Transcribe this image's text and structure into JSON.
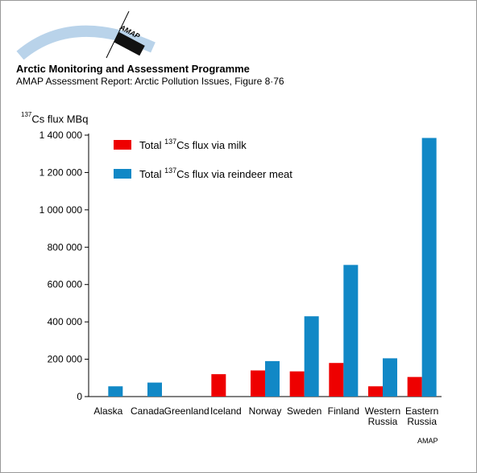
{
  "header": {
    "org": "Arctic Monitoring and Assessment Programme",
    "report": "AMAP Assessment Report: Arctic Pollution Issues, Figure 8·76",
    "logo_text": "AMAP",
    "credit": "AMAP"
  },
  "colors": {
    "milk": "#ee0000",
    "meat": "#1188c6",
    "axis": "#000000",
    "logo_arc": "#b9d3ea"
  },
  "chart_data": {
    "type": "bar",
    "ylabel_sup": "137",
    "ylabel": "Cs flux MBq",
    "ylim": [
      0,
      1400000
    ],
    "yticks": [
      0,
      200000,
      400000,
      600000,
      800000,
      1000000,
      1200000,
      1400000
    ],
    "ytick_labels": [
      "0",
      "200 000",
      "400 000",
      "600 000",
      "800 000",
      "1 000 000",
      "1 200 000",
      "1 400 000"
    ],
    "categories": [
      "Alaska",
      "Canada",
      "Greenland",
      "Iceland",
      "Norway",
      "Sweden",
      "Finland",
      "Western Russia",
      "Eastern Russia"
    ],
    "category_lines": [
      [
        "Alaska"
      ],
      [
        "Canada"
      ],
      [
        "Greenland"
      ],
      [
        "Iceland"
      ],
      [
        "Norway"
      ],
      [
        "Sweden"
      ],
      [
        "Finland"
      ],
      [
        "Western",
        "Russia"
      ],
      [
        "Eastern",
        "Russia"
      ]
    ],
    "series": [
      {
        "name": "Total 137Cs flux via milk",
        "legend_pre": "Total ",
        "legend_sup": "137",
        "legend_post": "Cs flux via milk",
        "color": "#ee0000",
        "values": [
          0,
          0,
          0,
          120000,
          140000,
          135000,
          180000,
          55000,
          105000
        ]
      },
      {
        "name": "Total 137Cs flux via reindeer meat",
        "legend_pre": "Total ",
        "legend_sup": "137",
        "legend_post": "Cs flux via reindeer meat",
        "color": "#1188c6",
        "values": [
          55000,
          75000,
          0,
          0,
          190000,
          430000,
          705000,
          205000,
          1385000
        ]
      }
    ],
    "grid": false,
    "legend_position": "top-left"
  }
}
